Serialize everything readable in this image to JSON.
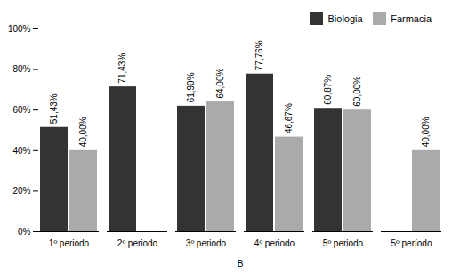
{
  "chart_data": {
    "type": "bar",
    "categories": [
      "1º periodo",
      "2º periodo",
      "3º periodo",
      "4º periodo",
      "5º periodo",
      "5º período"
    ],
    "series": [
      {
        "name": "Biologia",
        "color": "#333333",
        "values": [
          51.43,
          71.43,
          61.9,
          77.76,
          60.87,
          null
        ],
        "value_labels": [
          "51,43%",
          "71,43%",
          "61,90%",
          "77,76%",
          "60,87%",
          null
        ]
      },
      {
        "name": "Farmacia",
        "color": "#aaaaaa",
        "values": [
          40.0,
          null,
          64.0,
          46.67,
          60.0,
          40.0
        ],
        "value_labels": [
          "40,00%",
          null,
          "64,00%",
          "46,67%",
          "60,00%",
          "40,00%"
        ]
      }
    ],
    "xlabel": "B",
    "ylim": [
      0,
      100
    ],
    "yticks": [
      {
        "value": 0,
        "label": "0%"
      },
      {
        "value": 20,
        "label": "20%"
      },
      {
        "value": 40,
        "label": "40%"
      },
      {
        "value": 60,
        "label": "60%"
      },
      {
        "value": 80,
        "label": "80%"
      },
      {
        "value": 100,
        "label": "100%"
      }
    ],
    "grid": false,
    "legend": "upper right",
    "data_labels": true
  }
}
